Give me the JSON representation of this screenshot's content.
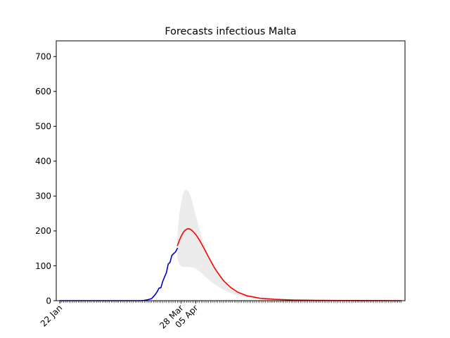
{
  "chart_data": {
    "type": "line",
    "title": "Forecasts infectious Malta",
    "xlabel": "",
    "ylabel": "",
    "x_unit": "day",
    "xlim": [
      "2020-01-20",
      "2020-07-28"
    ],
    "ylim": [
      0,
      745
    ],
    "yticks": [
      0,
      100,
      200,
      300,
      400,
      500,
      600,
      700
    ],
    "xticks": [
      {
        "date": "2020-01-22",
        "label": "22 Jan"
      },
      {
        "date": "2020-03-28",
        "label": "28 Mar"
      },
      {
        "date": "2020-04-05",
        "label": "05 Apr"
      }
    ],
    "minor_tick_range": [
      "2020-01-22",
      "2020-07-26"
    ],
    "grid": false,
    "series": [
      {
        "role": "observed",
        "color": "#0000cc",
        "points": [
          [
            "2020-01-22",
            0
          ],
          [
            "2020-02-15",
            0
          ],
          [
            "2020-03-06",
            0
          ],
          [
            "2020-03-08",
            1
          ],
          [
            "2020-03-10",
            3
          ],
          [
            "2020-03-12",
            6
          ],
          [
            "2020-03-13",
            12
          ],
          [
            "2020-03-14",
            18
          ],
          [
            "2020-03-15",
            26
          ],
          [
            "2020-03-16",
            36
          ],
          [
            "2020-03-17",
            37
          ],
          [
            "2020-03-18",
            55
          ],
          [
            "2020-03-19",
            68
          ],
          [
            "2020-03-20",
            80
          ],
          [
            "2020-03-21",
            105
          ],
          [
            "2020-03-22",
            110
          ],
          [
            "2020-03-23",
            130
          ],
          [
            "2020-03-24",
            135
          ],
          [
            "2020-03-25",
            140
          ],
          [
            "2020-03-26",
            150
          ]
        ]
      },
      {
        "role": "forecast",
        "color": "#ff0000",
        "points": [
          [
            "2020-03-26",
            158
          ],
          [
            "2020-03-27",
            172
          ],
          [
            "2020-03-28",
            184
          ],
          [
            "2020-03-29",
            194
          ],
          [
            "2020-03-30",
            201
          ],
          [
            "2020-03-31",
            205
          ],
          [
            "2020-04-01",
            206
          ],
          [
            "2020-04-02",
            205
          ],
          [
            "2020-04-03",
            201
          ],
          [
            "2020-04-05",
            190
          ],
          [
            "2020-04-07",
            174
          ],
          [
            "2020-04-09",
            155
          ],
          [
            "2020-04-11",
            135
          ],
          [
            "2020-04-13",
            115
          ],
          [
            "2020-04-15",
            96
          ],
          [
            "2020-04-17",
            80
          ],
          [
            "2020-04-20",
            58
          ],
          [
            "2020-04-24",
            38
          ],
          [
            "2020-04-28",
            24
          ],
          [
            "2020-05-03",
            14
          ],
          [
            "2020-05-10",
            7
          ],
          [
            "2020-05-18",
            4
          ],
          [
            "2020-05-28",
            2
          ],
          [
            "2020-06-10",
            1
          ],
          [
            "2020-06-25",
            0.5
          ],
          [
            "2020-07-26",
            0
          ]
        ]
      }
    ],
    "band": {
      "color": "#ebebeb",
      "upper": [
        [
          "2020-03-26",
          190
        ],
        [
          "2020-03-27",
          245
        ],
        [
          "2020-03-28",
          280
        ],
        [
          "2020-03-29",
          305
        ],
        [
          "2020-03-30",
          316
        ],
        [
          "2020-03-31",
          318
        ],
        [
          "2020-04-01",
          313
        ],
        [
          "2020-04-02",
          302
        ],
        [
          "2020-04-03",
          285
        ],
        [
          "2020-04-05",
          245
        ],
        [
          "2020-04-07",
          205
        ],
        [
          "2020-04-09",
          170
        ],
        [
          "2020-04-11",
          140
        ],
        [
          "2020-04-13",
          115
        ],
        [
          "2020-04-15",
          98
        ],
        [
          "2020-04-17",
          82
        ],
        [
          "2020-04-20",
          60
        ],
        [
          "2020-04-24",
          40
        ],
        [
          "2020-04-28",
          26
        ],
        [
          "2020-05-03",
          15
        ],
        [
          "2020-05-10",
          8
        ],
        [
          "2020-05-18",
          4
        ],
        [
          "2020-05-28",
          2
        ],
        [
          "2020-06-10",
          1
        ],
        [
          "2020-07-26",
          0
        ]
      ],
      "lower": [
        [
          "2020-03-26",
          120
        ],
        [
          "2020-03-27",
          105
        ],
        [
          "2020-03-28",
          98
        ],
        [
          "2020-03-29",
          97
        ],
        [
          "2020-03-30",
          97
        ],
        [
          "2020-03-31",
          97
        ],
        [
          "2020-04-02",
          96
        ],
        [
          "2020-04-04",
          94
        ],
        [
          "2020-04-06",
          88
        ],
        [
          "2020-04-08",
          80
        ],
        [
          "2020-04-10",
          70
        ],
        [
          "2020-04-12",
          60
        ],
        [
          "2020-04-14",
          52
        ],
        [
          "2020-04-16",
          45
        ],
        [
          "2020-04-18",
          38
        ],
        [
          "2020-04-20",
          32
        ],
        [
          "2020-04-24",
          22
        ],
        [
          "2020-04-28",
          15
        ],
        [
          "2020-05-03",
          9
        ],
        [
          "2020-05-10",
          5
        ],
        [
          "2020-05-18",
          3
        ],
        [
          "2020-05-28",
          1.5
        ],
        [
          "2020-06-10",
          0.5
        ],
        [
          "2020-07-26",
          0
        ]
      ]
    }
  }
}
